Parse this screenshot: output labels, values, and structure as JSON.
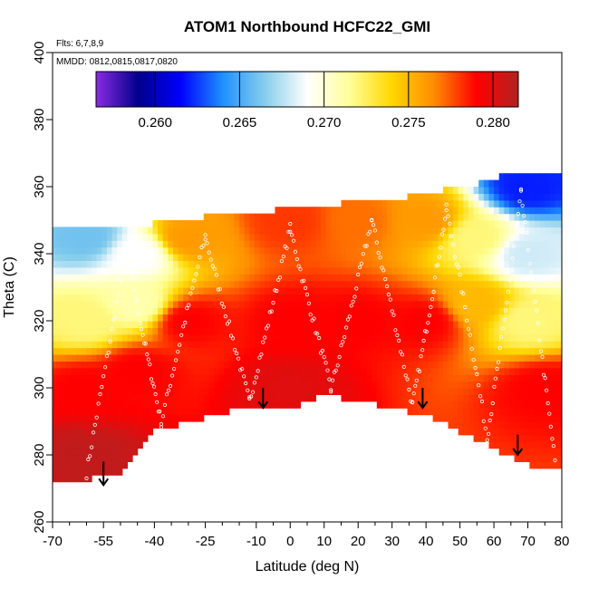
{
  "chart_data": {
    "type": "heatmap",
    "title": "ATOM1 Northbound HCFC22_GMI",
    "annotations": [
      "Flts: 6,7,8,9",
      "MMDD: 0812,0815,0817,0820"
    ],
    "xlabel": "Latitude (deg N)",
    "ylabel": "Theta (C)",
    "xlim": [
      -70,
      80
    ],
    "ylim": [
      260,
      400
    ],
    "x_ticks": [
      -70,
      -55,
      -40,
      -25,
      -10,
      0,
      10,
      20,
      30,
      40,
      50,
      60,
      70,
      80
    ],
    "x_tick_labels": [
      "-70",
      "-55",
      "-40",
      "-25",
      "-10",
      "0",
      "10",
      "20",
      "30",
      "40",
      "50",
      "60",
      "70",
      "80"
    ],
    "y_ticks": [
      260,
      280,
      300,
      320,
      340,
      360,
      380,
      400
    ],
    "y_tick_labels": [
      "260",
      "280",
      "300",
      "320",
      "340",
      "360",
      "380",
      "400"
    ],
    "colorbar": {
      "min": 0.2565,
      "max": 0.2815,
      "ticks": [
        0.26,
        0.265,
        0.27,
        0.275,
        0.28
      ],
      "tick_labels": [
        "0.260",
        "0.265",
        "0.270",
        "0.275",
        "0.280"
      ],
      "colors": [
        "#8a2be2",
        "#00008b",
        "#0000ff",
        "#1e90ff",
        "#87ceeb",
        "#ffffff",
        "#ffff99",
        "#ffd700",
        "#ff8c00",
        "#ff0000",
        "#b22222"
      ]
    },
    "upper_boundary": [
      [
        -55,
        347
      ],
      [
        -45,
        348
      ],
      [
        -35,
        350
      ],
      [
        -25,
        351
      ],
      [
        -15,
        352
      ],
      [
        -5,
        353
      ],
      [
        5,
        354
      ],
      [
        15,
        355
      ],
      [
        25,
        356
      ],
      [
        35,
        357
      ],
      [
        45,
        359
      ],
      [
        55,
        361
      ],
      [
        62,
        363
      ],
      [
        70,
        364
      ]
    ],
    "lower_boundary": [
      [
        -72,
        272
      ],
      [
        -62,
        272
      ],
      [
        -50,
        275
      ],
      [
        -40,
        287
      ],
      [
        -30,
        290
      ],
      [
        -15,
        294
      ],
      [
        0,
        294
      ],
      [
        10,
        298
      ],
      [
        20,
        296
      ],
      [
        30,
        294
      ],
      [
        40,
        292
      ],
      [
        50,
        287
      ],
      [
        60,
        282
      ],
      [
        70,
        277
      ],
      [
        80,
        276
      ]
    ],
    "descent_arrows": [
      {
        "lat": -55,
        "theta_start": 278,
        "theta_end": 271
      },
      {
        "lat": -8,
        "theta_start": 300,
        "theta_end": 294
      },
      {
        "lat": 39,
        "theta_start": 300,
        "theta_end": 294
      },
      {
        "lat": 67,
        "theta_start": 286,
        "theta_end": 280
      }
    ],
    "field_samples": [
      {
        "lat": -60,
        "theta": 345,
        "value": 0.266
      },
      {
        "lat": -60,
        "theta": 320,
        "value": 0.272
      },
      {
        "lat": -60,
        "theta": 300,
        "value": 0.279
      },
      {
        "lat": -60,
        "theta": 280,
        "value": 0.281
      },
      {
        "lat": -45,
        "theta": 340,
        "value": 0.269
      },
      {
        "lat": -45,
        "theta": 325,
        "value": 0.271
      },
      {
        "lat": -45,
        "theta": 305,
        "value": 0.279
      },
      {
        "lat": -30,
        "theta": 345,
        "value": 0.276
      },
      {
        "lat": -30,
        "theta": 320,
        "value": 0.279
      },
      {
        "lat": 0,
        "theta": 350,
        "value": 0.278
      },
      {
        "lat": 0,
        "theta": 320,
        "value": 0.279
      },
      {
        "lat": 0,
        "theta": 300,
        "value": 0.28
      },
      {
        "lat": 20,
        "theta": 350,
        "value": 0.277
      },
      {
        "lat": 20,
        "theta": 320,
        "value": 0.279
      },
      {
        "lat": 40,
        "theta": 350,
        "value": 0.276
      },
      {
        "lat": 40,
        "theta": 320,
        "value": 0.279
      },
      {
        "lat": 55,
        "theta": 345,
        "value": 0.272
      },
      {
        "lat": 55,
        "theta": 325,
        "value": 0.275
      },
      {
        "lat": 70,
        "theta": 360,
        "value": 0.262
      },
      {
        "lat": 70,
        "theta": 340,
        "value": 0.268
      },
      {
        "lat": 70,
        "theta": 320,
        "value": 0.272
      },
      {
        "lat": 75,
        "theta": 300,
        "value": 0.279
      }
    ],
    "grid": false,
    "legend": "colorbar top-inside"
  }
}
